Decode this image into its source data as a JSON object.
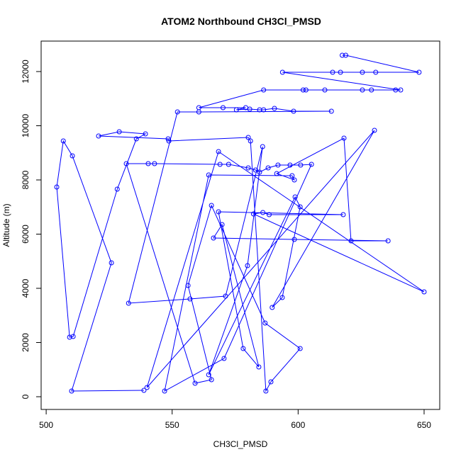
{
  "chart_data": {
    "type": "line",
    "title": "ATOM2 Northbound CH3Cl_PMSD",
    "xlabel": "CH3Cl_PMSD",
    "ylabel": "Altitude (m)",
    "color": "#0000ff",
    "x": [
      538.8,
      510.1,
      525.9,
      510.4,
      506.8,
      504.2,
      509.3,
      510.7,
      528.2,
      535.8,
      539.4,
      529.0,
      520.8,
      548.4,
      548.7,
      580.2,
      581.1,
      587.2,
      589.2,
      600.8,
      586.9,
      565.6,
      556.3,
      565.6,
      559.1,
      531.8,
      540.5,
      543.0,
      569.0,
      572.4,
      580.2,
      583.1,
      584.7,
      588.1,
      592.0,
      596.8,
      601.0,
      605.3,
      570.6,
      547.0,
      564.5,
      597.6,
      598.5,
      591.5,
      618.2,
      621.0,
      635.7,
      598.5,
      566.4,
      569.8,
      584.4,
      578.2,
      568.4,
      617.9,
      588.5,
      586.0,
      582.3,
      650.0,
      568.4,
      540.0,
      630.3,
      589.7,
      593.7,
      600.8,
      598.8,
      564.5,
      579.9,
      585.9,
      571.2,
      557.1,
      532.7,
      552.1,
      560.6,
      613.2,
      598.2,
      590.6,
      586.3,
      584.7,
      580.8,
      575.5,
      579.2,
      570.2,
      560.6,
      586.3,
      602.0,
      603.1,
      610.6,
      625.5,
      629.1,
      638.7,
      640.7,
      593.8,
      613.7,
      616.8,
      625.5,
      630.8,
      648.0,
      618.9,
      617.5
    ],
    "values": [
      235,
      209,
      4941,
      8889,
      9438,
      7739,
      2196,
      2222,
      7660,
      9516,
      9699,
      9778,
      9621,
      9516,
      9438,
      9569,
      9438,
      209,
      549,
      1778,
      2719,
      7059,
      4105,
      627,
      497,
      8601,
      8601,
      8601,
      8575,
      8575,
      8444,
      8366,
      8288,
      8444,
      8549,
      8549,
      8549,
      8575,
      1412,
      209,
      8183,
      8157,
      8000,
      8235,
      9542,
      5752,
      5752,
      5804,
      5856,
      6353,
      1098,
      1778,
      6824,
      6719,
      6719,
      6797,
      6745,
      3869,
      9046,
      340,
      9830,
      3294,
      3660,
      7007,
      7373,
      810,
      4837,
      9229,
      3712,
      3608,
      3451,
      10510,
      10510,
      10536,
      10536,
      10640,
      10588,
      10588,
      10614,
      10588,
      10667,
      10667,
      10667,
      11320,
      11320,
      11320,
      11320,
      11320,
      11320,
      11320,
      11320,
      11974,
      11974,
      11974,
      11974,
      11974,
      11974,
      12601,
      12601
    ],
    "xlim": [
      498.0,
      656.2
    ],
    "ylim": [
      -470,
      13124
    ],
    "xticks": [
      500,
      550,
      600,
      650
    ],
    "yticks": [
      0,
      2000,
      4000,
      6000,
      8000,
      10000,
      12000
    ]
  }
}
